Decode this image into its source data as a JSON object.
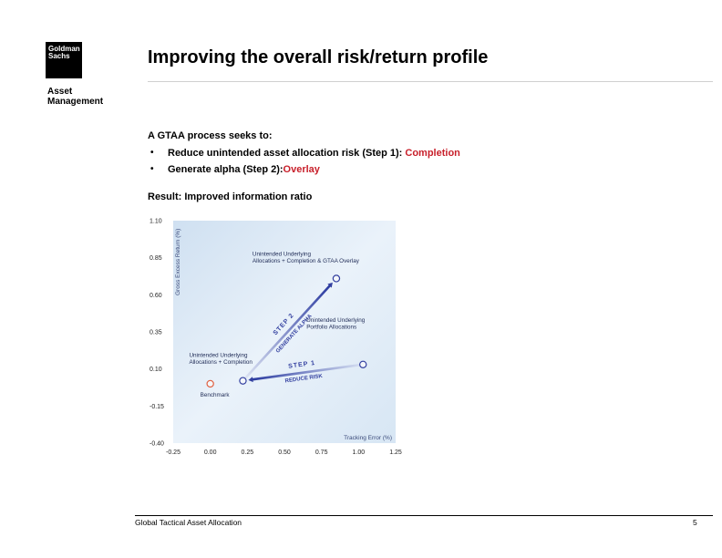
{
  "brand": {
    "logo_line1": "Goldman",
    "logo_line2": "Sachs",
    "sub_line1": "Asset",
    "sub_line2": "Management"
  },
  "title": "Improving the overall risk/return profile",
  "intro": "A GTAA process seeks to:",
  "bullets": [
    {
      "text": "Reduce unintended asset allocation risk (Step 1): ",
      "highlight": "Completion"
    },
    {
      "text": "Generate alpha (Step 2):",
      "highlight": "Overlay"
    }
  ],
  "result": "Result: Improved information ratio",
  "footer": {
    "left": "Global Tactical Asset Allocation",
    "page": "5"
  },
  "colors": {
    "highlight": "#c8202b",
    "plot_bg": "#e4eef8",
    "arrow": "#3340a0",
    "benchmark": "#e06040"
  },
  "chart_data": {
    "type": "scatter",
    "xlabel": "Tracking Error (%)",
    "ylabel": "Gross Excess Return (%)",
    "xlim": [
      -0.25,
      1.25
    ],
    "ylim": [
      -0.4,
      1.1
    ],
    "x_ticks": [
      "-0.25",
      "0.00",
      "0.25",
      "0.50",
      "0.75",
      "1.00",
      "1.25"
    ],
    "y_ticks": [
      "1.10",
      "0.85",
      "0.60",
      "0.35",
      "0.10",
      "-0.15",
      "-0.40"
    ],
    "x_tick_values": [
      -0.25,
      0,
      0.25,
      0.5,
      0.75,
      1.0,
      1.25
    ],
    "y_tick_values": [
      1.1,
      0.85,
      0.6,
      0.35,
      0.1,
      -0.15,
      -0.4
    ],
    "points": [
      {
        "id": "benchmark",
        "x": 0.0,
        "y": 0.0,
        "label_lines": [
          "Benchmark"
        ]
      },
      {
        "id": "completion",
        "x": 0.22,
        "y": 0.02,
        "label_lines": [
          "Unintended Underlying",
          "Allocations + Completion"
        ]
      },
      {
        "id": "portfolio",
        "x": 1.03,
        "y": 0.13,
        "label_lines": [
          "Unintended Underlying",
          "Portfolio Allocations"
        ]
      },
      {
        "id": "overlay",
        "x": 0.85,
        "y": 0.71,
        "label_lines": [
          "Unintended Underlying",
          "Allocations + Completion & GTAA Overlay"
        ]
      }
    ],
    "arrows": [
      {
        "from": "portfolio",
        "to": "completion",
        "step": "STEP 1",
        "action": "REDUCE RISK"
      },
      {
        "from": "completion",
        "to": "overlay",
        "step": "STEP 2",
        "action": "GENERATE ALPHA"
      }
    ]
  }
}
